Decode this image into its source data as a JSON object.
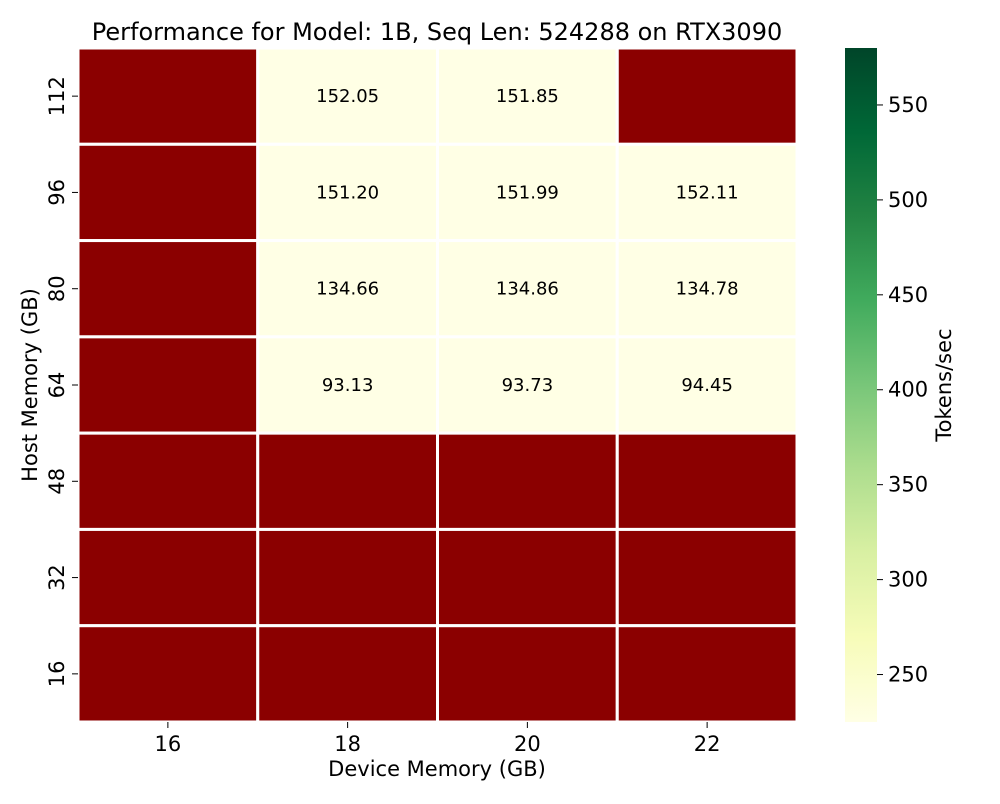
{
  "chart_data": {
    "type": "heatmap",
    "title": "Performance for Model: 1B, Seq Len: 524288 on RTX3090",
    "xlabel": "Device Memory (GB)",
    "ylabel": "Host Memory (GB)",
    "x_categories": [
      "16",
      "18",
      "20",
      "22"
    ],
    "y_categories": [
      "112",
      "96",
      "80",
      "64",
      "48",
      "32",
      "16"
    ],
    "values": [
      [
        null,
        152.05,
        151.85,
        null
      ],
      [
        null,
        151.2,
        151.99,
        152.11
      ],
      [
        null,
        134.66,
        134.86,
        134.78
      ],
      [
        null,
        93.13,
        93.73,
        94.45
      ],
      [
        null,
        null,
        null,
        null
      ],
      [
        null,
        null,
        null,
        null
      ],
      [
        null,
        null,
        null,
        null
      ]
    ],
    "cell_labels": [
      [
        "",
        "152.05",
        "151.85",
        ""
      ],
      [
        "",
        "151.20",
        "151.99",
        "152.11"
      ],
      [
        "",
        "134.66",
        "134.86",
        "134.78"
      ],
      [
        "",
        "93.13",
        "93.73",
        "94.45"
      ],
      [
        "",
        "",
        "",
        ""
      ],
      [
        "",
        "",
        "",
        ""
      ],
      [
        "",
        "",
        "",
        ""
      ]
    ],
    "missing_color": "#8b0000",
    "value_cell_color": "#ffffe5",
    "colorbar": {
      "label": "Tokens/sec",
      "range": [
        225,
        580
      ],
      "ticks": [
        250,
        300,
        350,
        400,
        450,
        500,
        550
      ],
      "tick_labels": [
        "250",
        "300",
        "350",
        "400",
        "450",
        "500",
        "550"
      ],
      "colors": [
        "#ffffe5",
        "#f7fcb9",
        "#d9f0a3",
        "#addd8e",
        "#78c679",
        "#41ab5d",
        "#238443",
        "#006837",
        "#004529"
      ]
    },
    "grid": false
  }
}
